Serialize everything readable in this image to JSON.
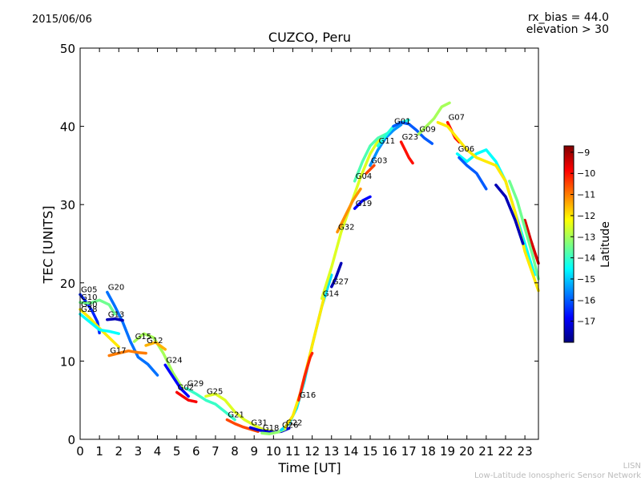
{
  "header": {
    "date": "2015/06/06",
    "rx_bias": "rx_bias = 44.0",
    "elevation": "elevation > 30"
  },
  "credit": {
    "line1": "LISN",
    "line2": "Low-Latitude Ionospheric Sensor Network"
  },
  "chart_data": {
    "type": "line",
    "title": "CUZCO, Peru",
    "xlabel": "Time [UT]",
    "ylabel": "TEC [UNITS]",
    "xlim": [
      0,
      23.7
    ],
    "ylim": [
      0,
      50
    ],
    "xticks": [
      0,
      1,
      2,
      3,
      4,
      5,
      6,
      7,
      8,
      9,
      10,
      11,
      12,
      13,
      14,
      15,
      16,
      17,
      18,
      19,
      20,
      21,
      22,
      23
    ],
    "yticks": [
      0,
      10,
      20,
      30,
      40,
      50
    ],
    "grid": false,
    "colorbar": {
      "label": "Latitude",
      "range": [
        -18,
        -8.7
      ],
      "ticks": [
        -9,
        -10,
        -11,
        -12,
        -13,
        -14,
        -15,
        -16,
        -17
      ],
      "colormap": [
        "#00007f",
        "#0000ff",
        "#007fff",
        "#00ffff",
        "#7fff7f",
        "#ffff00",
        "#ff7f00",
        "#ff0000",
        "#7f0000"
      ]
    },
    "series": [
      {
        "name": "G05",
        "lat": -16.5,
        "x": [
          0.0,
          0.3,
          0.6,
          0.9,
          1.0
        ],
        "y": [
          18.5,
          17.6,
          16.5,
          15.0,
          13.6
        ]
      },
      {
        "name": "G10",
        "lat": -13.5,
        "x": [
          0.0,
          0.5,
          1.0,
          1.5,
          1.8
        ],
        "y": [
          17.5,
          17.4,
          17.8,
          17.2,
          16.0
        ]
      },
      {
        "name": "G30",
        "lat": -12.0,
        "x": [
          0.0,
          0.5,
          1.0,
          1.5,
          2.0
        ],
        "y": [
          16.6,
          15.5,
          14.2,
          13.0,
          11.8
        ]
      },
      {
        "name": "G28",
        "lat": -14.5,
        "x": [
          0.0,
          0.5,
          1.0,
          1.5,
          2.0
        ],
        "y": [
          16.0,
          15.0,
          14.0,
          13.8,
          13.5
        ]
      },
      {
        "name": "G20",
        "lat": -15.8,
        "x": [
          1.4,
          1.8,
          2.2,
          2.6,
          3.0,
          3.5,
          4.0
        ],
        "y": [
          18.8,
          17.0,
          15.0,
          12.5,
          10.5,
          9.6,
          8.2
        ]
      },
      {
        "name": "G13",
        "lat": -17.5,
        "x": [
          1.4,
          1.8,
          2.2
        ],
        "y": [
          15.3,
          15.4,
          15.2
        ]
      },
      {
        "name": "G15",
        "lat": -13.0,
        "x": [
          2.8,
          3.3,
          3.8,
          4.3,
          4.8,
          5.3
        ],
        "y": [
          12.5,
          13.5,
          13.0,
          11.0,
          8.5,
          6.5
        ]
      },
      {
        "name": "G12",
        "lat": -11.5,
        "x": [
          3.4,
          3.9,
          4.4
        ],
        "y": [
          12.0,
          12.4,
          11.5
        ]
      },
      {
        "name": "G17",
        "lat": -11.0,
        "x": [
          1.5,
          2.0,
          2.5,
          3.0,
          3.4
        ],
        "y": [
          10.7,
          11.0,
          11.3,
          11.1,
          11.0
        ]
      },
      {
        "name": "G24",
        "lat": -16.8,
        "x": [
          4.4,
          4.8,
          5.2,
          5.6
        ],
        "y": [
          9.5,
          8.0,
          6.5,
          5.5
        ]
      },
      {
        "name": "G02",
        "lat": -9.8,
        "x": [
          5.0,
          5.3,
          5.6,
          6.0
        ],
        "y": [
          6.0,
          5.5,
          5.0,
          4.8
        ]
      },
      {
        "name": "G29",
        "lat": -14.0,
        "x": [
          5.5,
          6.0,
          6.5,
          7.0,
          7.5,
          8.0
        ],
        "y": [
          6.5,
          5.8,
          5.0,
          4.5,
          3.5,
          2.5
        ]
      },
      {
        "name": "G25",
        "lat": -12.5,
        "x": [
          6.5,
          7.0,
          7.5,
          8.0,
          8.5,
          9.0,
          9.5,
          10.0
        ],
        "y": [
          5.5,
          5.8,
          5.0,
          3.5,
          2.5,
          1.8,
          1.2,
          1.0
        ]
      },
      {
        "name": "G21",
        "lat": -10.5,
        "x": [
          7.6,
          8.0,
          8.4,
          8.8,
          9.2
        ],
        "y": [
          2.5,
          2.0,
          1.6,
          1.3,
          1.0
        ]
      },
      {
        "name": "G31",
        "lat": -17.2,
        "x": [
          8.8,
          9.2,
          9.6,
          10.0,
          10.4,
          10.8
        ],
        "y": [
          1.5,
          1.2,
          1.0,
          0.9,
          1.0,
          1.4
        ]
      },
      {
        "name": "G18",
        "lat": -13.2,
        "x": [
          9.4,
          9.8,
          10.2,
          10.6
        ],
        "y": [
          0.8,
          0.7,
          0.9,
          1.3
        ]
      },
      {
        "name": "G26",
        "lat": -14.8,
        "x": [
          10.4,
          10.8,
          11.2,
          11.6,
          12.0,
          12.5,
          13.0
        ],
        "y": [
          1.2,
          2.0,
          4.0,
          7.5,
          12.0,
          17.0,
          21.0
        ]
      },
      {
        "name": "G22",
        "lat": -12.0,
        "x": [
          10.6,
          11.0,
          11.4,
          11.8,
          12.2,
          12.6
        ],
        "y": [
          1.5,
          3.0,
          6.0,
          10.0,
          14.0,
          18.0
        ]
      },
      {
        "name": "G16",
        "lat": -10.2,
        "x": [
          11.3,
          11.6,
          11.9,
          12.0
        ],
        "y": [
          5.0,
          8.0,
          10.5,
          11.0
        ]
      },
      {
        "name": "G27",
        "lat": -17.5,
        "x": [
          13.0,
          13.2,
          13.5
        ],
        "y": [
          19.5,
          20.5,
          22.5
        ]
      },
      {
        "name": "G14",
        "lat": -12.5,
        "x": [
          12.5,
          13.0,
          13.5,
          14.0,
          14.5,
          15.0,
          15.5
        ],
        "y": [
          18.0,
          22.0,
          26.5,
          30.0,
          33.5,
          36.5,
          38.5
        ]
      },
      {
        "name": "G32",
        "lat": -11.2,
        "x": [
          13.3,
          13.7,
          14.1,
          14.5
        ],
        "y": [
          26.5,
          28.5,
          30.5,
          32.0
        ]
      },
      {
        "name": "G19",
        "lat": -16.8,
        "x": [
          14.2,
          14.6,
          15.0
        ],
        "y": [
          29.5,
          30.5,
          31.0
        ]
      },
      {
        "name": "G04",
        "lat": -13.8,
        "x": [
          14.2,
          14.6,
          15.0,
          15.4,
          15.8,
          16.2
        ],
        "y": [
          33.0,
          35.5,
          37.5,
          38.5,
          39.0,
          39.5
        ]
      },
      {
        "name": "G03",
        "lat": -15.5,
        "x": [
          15.0,
          15.4,
          15.8,
          16.2,
          16.6
        ],
        "y": [
          35.0,
          37.0,
          38.5,
          39.5,
          40.2
        ]
      },
      {
        "name": "G11",
        "lat": -14.2,
        "x": [
          15.4,
          15.8,
          16.2,
          16.6,
          17.0
        ],
        "y": [
          37.5,
          38.8,
          40.0,
          40.5,
          40.8
        ]
      },
      {
        "name": "G01",
        "lat": -16.0,
        "x": [
          16.2,
          16.6,
          17.0,
          17.4,
          17.8,
          18.2
        ],
        "y": [
          40.0,
          40.5,
          40.3,
          39.5,
          38.5,
          37.8
        ]
      },
      {
        "name": "G23",
        "lat": -10.0,
        "x": [
          16.6,
          16.8,
          17.0,
          17.2
        ],
        "y": [
          38.0,
          37.0,
          36.0,
          35.3
        ]
      },
      {
        "name": "G09",
        "lat": -13.0,
        "x": [
          17.5,
          17.9,
          18.3,
          18.7,
          19.1
        ],
        "y": [
          39.0,
          40.0,
          41.0,
          42.5,
          43.0
        ]
      },
      {
        "name": "G07",
        "lat": -10.0,
        "x": [
          19.0,
          19.2,
          19.4,
          19.6
        ],
        "y": [
          40.5,
          39.5,
          38.5,
          38.0
        ]
      },
      {
        "name": "G06",
        "lat": -14.5,
        "x": [
          19.5,
          20.0,
          20.5,
          21.0,
          21.5,
          22.0,
          22.5,
          23.0,
          23.5
        ],
        "y": [
          36.5,
          35.5,
          36.5,
          37.0,
          35.5,
          33.0,
          29.0,
          25.0,
          21.0
        ]
      },
      {
        "name": "",
        "lat": -12.0,
        "x": [
          18.5,
          19.0,
          19.5,
          20.0,
          20.5,
          21.0,
          21.5,
          22.0,
          22.5,
          23.0,
          23.7
        ],
        "y": [
          40.5,
          40.0,
          38.5,
          37.0,
          36.0,
          35.5,
          35.0,
          33.0,
          29.0,
          24.0,
          19.0
        ]
      },
      {
        "name": "",
        "lat": -17.5,
        "x": [
          21.5,
          22.0,
          22.5,
          22.9
        ],
        "y": [
          32.5,
          31.0,
          28.0,
          25.0
        ]
      },
      {
        "name": "",
        "lat": -16.0,
        "x": [
          19.6,
          20.0,
          20.5,
          21.0
        ],
        "y": [
          36.0,
          35.0,
          34.0,
          32.0
        ]
      },
      {
        "name": "",
        "lat": -9.5,
        "x": [
          23.0,
          23.3,
          23.7
        ],
        "y": [
          28.0,
          25.5,
          22.5
        ]
      },
      {
        "name": "",
        "lat": -10.5,
        "x": [
          14.8,
          15.0,
          15.2
        ],
        "y": [
          34.0,
          34.5,
          35.0
        ]
      },
      {
        "name": "",
        "lat": -13.5,
        "x": [
          22.2,
          22.6,
          23.0,
          23.4,
          23.7
        ],
        "y": [
          33.0,
          30.5,
          27.0,
          23.5,
          20.5
        ]
      }
    ]
  }
}
